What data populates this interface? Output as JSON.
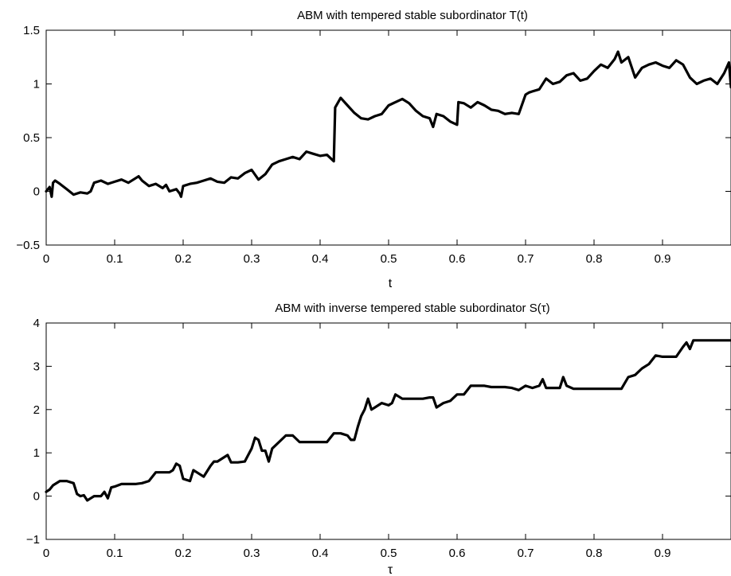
{
  "chart_data": [
    {
      "type": "line",
      "title": "ABM with tempered stable subordinator T(t)",
      "xlabel": "t",
      "ylabel": "",
      "xlim": [
        0,
        1
      ],
      "ylim": [
        -0.5,
        1.5
      ],
      "xticks": [
        0,
        0.1,
        0.2,
        0.3,
        0.4,
        0.5,
        0.6,
        0.7,
        0.8,
        0.9
      ],
      "xtick_labels": [
        "0",
        "0.1",
        "0.2",
        "0.3",
        "0.4",
        "0.5",
        "0.6",
        "0.7",
        "0.8",
        "0.9"
      ],
      "yticks": [
        -0.5,
        0,
        0.5,
        1,
        1.5
      ],
      "ytick_labels": [
        "−0.5",
        "0",
        "0.5",
        "1",
        "1.5"
      ],
      "grid": false,
      "series": [
        {
          "color": "#000000",
          "x": [
            0,
            0.005,
            0.008,
            0.01,
            0.013,
            0.02,
            0.03,
            0.04,
            0.05,
            0.06,
            0.065,
            0.07,
            0.08,
            0.09,
            0.1,
            0.11,
            0.12,
            0.13,
            0.135,
            0.14,
            0.15,
            0.16,
            0.17,
            0.175,
            0.18,
            0.19,
            0.195,
            0.197,
            0.2,
            0.21,
            0.22,
            0.23,
            0.24,
            0.25,
            0.26,
            0.27,
            0.28,
            0.29,
            0.3,
            0.31,
            0.32,
            0.33,
            0.34,
            0.35,
            0.36,
            0.37,
            0.38,
            0.39,
            0.4,
            0.41,
            0.42,
            0.422,
            0.43,
            0.44,
            0.45,
            0.46,
            0.47,
            0.48,
            0.49,
            0.5,
            0.51,
            0.52,
            0.53,
            0.54,
            0.55,
            0.56,
            0.565,
            0.57,
            0.58,
            0.59,
            0.6,
            0.602,
            0.61,
            0.62,
            0.63,
            0.64,
            0.65,
            0.66,
            0.67,
            0.68,
            0.69,
            0.7,
            0.705,
            0.71,
            0.72,
            0.73,
            0.74,
            0.75,
            0.76,
            0.77,
            0.78,
            0.79,
            0.8,
            0.81,
            0.82,
            0.83,
            0.835,
            0.84,
            0.85,
            0.86,
            0.87,
            0.88,
            0.89,
            0.9,
            0.91,
            0.92,
            0.93,
            0.94,
            0.95,
            0.96,
            0.97,
            0.98,
            0.99,
            0.997,
            1.0
          ],
          "y": [
            0.0,
            0.04,
            -0.05,
            0.08,
            0.1,
            0.07,
            0.02,
            -0.03,
            -0.01,
            -0.02,
            0.0,
            0.08,
            0.1,
            0.07,
            0.09,
            0.11,
            0.08,
            0.12,
            0.14,
            0.1,
            0.05,
            0.07,
            0.03,
            0.06,
            0.0,
            0.02,
            -0.02,
            -0.05,
            0.05,
            0.07,
            0.08,
            0.1,
            0.12,
            0.09,
            0.08,
            0.13,
            0.12,
            0.17,
            0.2,
            0.11,
            0.16,
            0.25,
            0.28,
            0.3,
            0.32,
            0.3,
            0.37,
            0.35,
            0.33,
            0.34,
            0.28,
            0.78,
            0.87,
            0.8,
            0.73,
            0.68,
            0.67,
            0.7,
            0.72,
            0.8,
            0.83,
            0.86,
            0.82,
            0.75,
            0.7,
            0.68,
            0.6,
            0.72,
            0.7,
            0.65,
            0.62,
            0.83,
            0.82,
            0.78,
            0.83,
            0.8,
            0.76,
            0.75,
            0.72,
            0.73,
            0.72,
            0.9,
            0.92,
            0.93,
            0.95,
            1.05,
            1.0,
            1.02,
            1.08,
            1.1,
            1.03,
            1.05,
            1.12,
            1.18,
            1.15,
            1.23,
            1.3,
            1.2,
            1.25,
            1.06,
            1.15,
            1.18,
            1.2,
            1.17,
            1.15,
            1.22,
            1.18,
            1.06,
            1.0,
            1.03,
            1.05,
            1.0,
            1.1,
            1.2,
            0.97
          ]
        }
      ]
    },
    {
      "type": "line",
      "title": "ABM with inverse tempered stable subordinator S(τ)",
      "xlabel": "τ",
      "ylabel": "",
      "xlim": [
        0,
        1
      ],
      "ylim": [
        -1,
        4
      ],
      "xticks": [
        0,
        0.1,
        0.2,
        0.3,
        0.4,
        0.5,
        0.6,
        0.7,
        0.8,
        0.9
      ],
      "xtick_labels": [
        "0",
        "0.1",
        "0.2",
        "0.3",
        "0.4",
        "0.5",
        "0.6",
        "0.7",
        "0.8",
        "0.9"
      ],
      "yticks": [
        -1,
        0,
        1,
        2,
        3,
        4
      ],
      "ytick_labels": [
        "−1",
        "0",
        "1",
        "2",
        "3",
        "4"
      ],
      "grid": false,
      "series": [
        {
          "color": "#000000",
          "x": [
            0,
            0.005,
            0.01,
            0.02,
            0.03,
            0.04,
            0.045,
            0.05,
            0.055,
            0.06,
            0.065,
            0.07,
            0.08,
            0.085,
            0.09,
            0.095,
            0.1,
            0.11,
            0.12,
            0.13,
            0.14,
            0.15,
            0.16,
            0.17,
            0.18,
            0.185,
            0.19,
            0.195,
            0.2,
            0.21,
            0.215,
            0.22,
            0.23,
            0.24,
            0.245,
            0.25,
            0.26,
            0.265,
            0.27,
            0.28,
            0.29,
            0.3,
            0.305,
            0.31,
            0.315,
            0.32,
            0.325,
            0.33,
            0.34,
            0.35,
            0.36,
            0.37,
            0.38,
            0.39,
            0.4,
            0.41,
            0.42,
            0.43,
            0.44,
            0.445,
            0.45,
            0.455,
            0.46,
            0.465,
            0.47,
            0.475,
            0.48,
            0.49,
            0.5,
            0.505,
            0.51,
            0.52,
            0.53,
            0.54,
            0.55,
            0.56,
            0.565,
            0.57,
            0.58,
            0.59,
            0.6,
            0.61,
            0.62,
            0.63,
            0.64,
            0.65,
            0.66,
            0.67,
            0.68,
            0.69,
            0.7,
            0.71,
            0.72,
            0.725,
            0.73,
            0.74,
            0.75,
            0.755,
            0.76,
            0.77,
            0.78,
            0.79,
            0.8,
            0.81,
            0.82,
            0.83,
            0.84,
            0.85,
            0.86,
            0.87,
            0.88,
            0.89,
            0.9,
            0.91,
            0.92,
            0.93,
            0.935,
            0.94,
            0.945,
            0.95,
            0.96,
            0.97,
            0.98,
            0.99,
            1.0
          ],
          "y": [
            0.1,
            0.15,
            0.25,
            0.35,
            0.35,
            0.3,
            0.05,
            0.0,
            0.02,
            -0.1,
            -0.05,
            0.0,
            0.0,
            0.1,
            -0.05,
            0.2,
            0.22,
            0.28,
            0.28,
            0.28,
            0.3,
            0.35,
            0.55,
            0.55,
            0.55,
            0.6,
            0.75,
            0.7,
            0.4,
            0.35,
            0.6,
            0.55,
            0.45,
            0.7,
            0.8,
            0.8,
            0.9,
            0.95,
            0.78,
            0.78,
            0.8,
            1.1,
            1.35,
            1.3,
            1.05,
            1.05,
            0.8,
            1.1,
            1.25,
            1.4,
            1.4,
            1.25,
            1.25,
            1.25,
            1.25,
            1.25,
            1.45,
            1.45,
            1.4,
            1.3,
            1.3,
            1.6,
            1.85,
            2.0,
            2.25,
            2.0,
            2.05,
            2.15,
            2.1,
            2.15,
            2.35,
            2.25,
            2.25,
            2.25,
            2.25,
            2.28,
            2.28,
            2.05,
            2.15,
            2.2,
            2.35,
            2.35,
            2.55,
            2.55,
            2.55,
            2.52,
            2.52,
            2.52,
            2.5,
            2.45,
            2.55,
            2.5,
            2.55,
            2.7,
            2.5,
            2.5,
            2.5,
            2.75,
            2.55,
            2.48,
            2.48,
            2.48,
            2.48,
            2.48,
            2.48,
            2.48,
            2.48,
            2.75,
            2.8,
            2.95,
            3.05,
            3.25,
            3.22,
            3.22,
            3.22,
            3.45,
            3.55,
            3.4,
            3.6,
            3.6,
            3.6,
            3.6,
            3.6,
            3.6,
            3.6
          ]
        }
      ]
    }
  ]
}
